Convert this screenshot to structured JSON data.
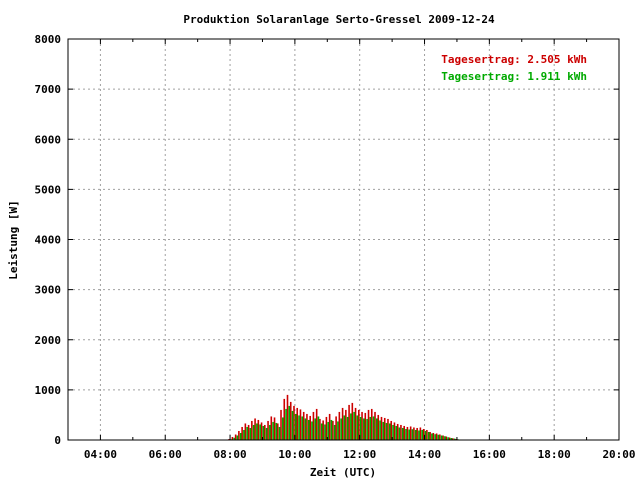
{
  "chart_data": {
    "type": "bar",
    "title": "Produktion Solaranlage Serto-Gressel 2009-12-24",
    "xlabel": "Zeit (UTC)",
    "ylabel": "Leistung [W]",
    "x_unit": "hours UTC",
    "xlim": [
      3.0,
      20.0
    ],
    "ylim": [
      0,
      8000
    ],
    "x_ticks": [
      4,
      6,
      8,
      10,
      12,
      14,
      16,
      18,
      20
    ],
    "x_tick_labels": [
      "04:00",
      "06:00",
      "08:00",
      "10:00",
      "12:00",
      "14:00",
      "16:00",
      "18:00",
      "20:00"
    ],
    "y_ticks": [
      0,
      1000,
      2000,
      3000,
      4000,
      5000,
      6000,
      7000,
      8000
    ],
    "y_tick_labels": [
      "0",
      "1000",
      "2000",
      "3000",
      "4000",
      "5000",
      "6000",
      "7000",
      "8000"
    ],
    "grid": true,
    "legend_position": "top-right",
    "x": [
      8.0,
      8.1,
      8.2,
      8.3,
      8.4,
      8.5,
      8.6,
      8.7,
      8.8,
      8.9,
      9.0,
      9.1,
      9.2,
      9.3,
      9.4,
      9.5,
      9.6,
      9.7,
      9.8,
      9.9,
      10.0,
      10.1,
      10.2,
      10.3,
      10.4,
      10.5,
      10.6,
      10.7,
      10.8,
      10.9,
      11.0,
      11.1,
      11.2,
      11.3,
      11.4,
      11.5,
      11.6,
      11.7,
      11.8,
      11.9,
      12.0,
      12.1,
      12.2,
      12.3,
      12.4,
      12.5,
      12.6,
      12.7,
      12.8,
      12.9,
      13.0,
      13.1,
      13.2,
      13.3,
      13.4,
      13.5,
      13.6,
      13.7,
      13.8,
      13.9,
      14.0,
      14.1,
      14.2,
      14.3,
      14.4,
      14.5,
      14.6,
      14.7,
      14.8,
      14.9,
      15.0,
      15.1
    ],
    "series": [
      {
        "name": "Tagesertrag: 2.505 kWh",
        "color": "#cc0000",
        "values": [
          20,
          60,
          110,
          180,
          260,
          330,
          300,
          380,
          430,
          400,
          350,
          300,
          380,
          470,
          450,
          330,
          600,
          820,
          900,
          760,
          680,
          640,
          610,
          560,
          520,
          480,
          560,
          620,
          420,
          390,
          460,
          520,
          380,
          470,
          560,
          640,
          600,
          700,
          740,
          640,
          600,
          560,
          540,
          600,
          620,
          560,
          500,
          460,
          440,
          420,
          380,
          350,
          320,
          300,
          280,
          260,
          270,
          250,
          240,
          250,
          220,
          200,
          160,
          140,
          130,
          110,
          90,
          70,
          50,
          35,
          20,
          10
        ]
      },
      {
        "name": "Tagesertrag: 1.911 kWh",
        "color": "#00aa00",
        "values": [
          15,
          45,
          90,
          140,
          200,
          260,
          240,
          300,
          330,
          310,
          280,
          240,
          300,
          360,
          340,
          260,
          450,
          620,
          680,
          580,
          520,
          490,
          470,
          430,
          400,
          370,
          430,
          470,
          330,
          310,
          360,
          400,
          300,
          370,
          430,
          490,
          460,
          530,
          560,
          490,
          460,
          430,
          420,
          460,
          470,
          430,
          390,
          360,
          340,
          330,
          300,
          280,
          250,
          240,
          220,
          210,
          215,
          200,
          190,
          200,
          180,
          160,
          130,
          115,
          105,
          90,
          75,
          55,
          40,
          28,
          15,
          6
        ]
      }
    ]
  }
}
